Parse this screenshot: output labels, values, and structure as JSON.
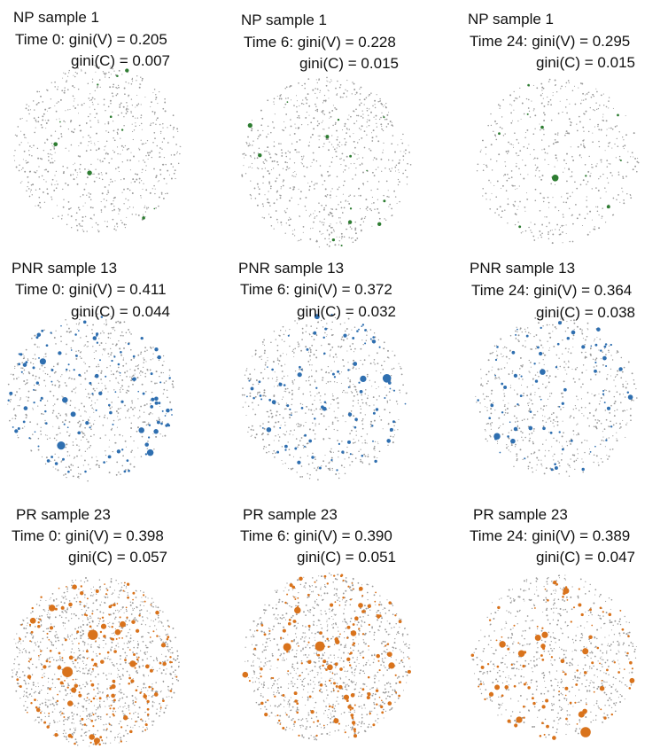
{
  "panels": [
    {
      "sample": "NP sample 1",
      "time": "Time 0: gini(V) = 0.205",
      "ginic": "gini(C) = 0.007",
      "group": "NP",
      "seed": 11
    },
    {
      "sample": "NP sample 1",
      "time": "Time 6: gini(V) = 0.228",
      "ginic": "gini(C) = 0.015",
      "group": "NP",
      "seed": 12
    },
    {
      "sample": "NP sample 1",
      "time": "Time 24: gini(V) = 0.295",
      "ginic": "gini(C) = 0.015",
      "group": "NP",
      "seed": 13
    },
    {
      "sample": "PNR sample 13",
      "time": "Time 0: gini(V) = 0.411",
      "ginic": "gini(C) = 0.044",
      "group": "PNR",
      "seed": 21
    },
    {
      "sample": "PNR sample 13",
      "time": "Time 6: gini(V) = 0.372",
      "ginic": "gini(C) = 0.032",
      "group": "PNR",
      "seed": 22
    },
    {
      "sample": "PNR sample 13",
      "time": "Time 24: gini(V) = 0.364",
      "ginic": "gini(C) = 0.038",
      "group": "PNR",
      "seed": 23
    },
    {
      "sample": "PR sample 23",
      "time": "Time 0: gini(V) = 0.398",
      "ginic": "gini(C) = 0.057",
      "group": "PR",
      "seed": 31
    },
    {
      "sample": "PR sample 23",
      "time": "Time 6: gini(V) = 0.390",
      "ginic": "gini(C) = 0.051",
      "group": "PR",
      "seed": 32
    },
    {
      "sample": "PR sample 23",
      "time": "Time 24: gini(V) = 0.389",
      "ginic": "gini(C) = 0.047",
      "group": "PR",
      "seed": 33
    }
  ],
  "colors": {
    "NP": "#2e7d32",
    "PNR": "#2f6fb0",
    "PR": "#d9731c",
    "grey": "#9a9a9a"
  }
}
